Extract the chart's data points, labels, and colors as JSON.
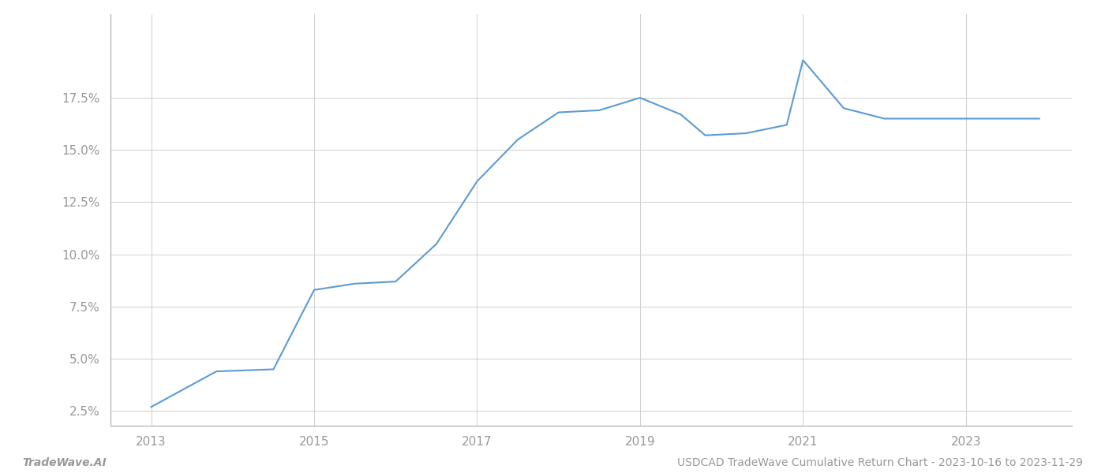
{
  "x_values": [
    2013.0,
    2013.8,
    2014.5,
    2015.0,
    2015.5,
    2016.0,
    2016.5,
    2017.0,
    2017.5,
    2018.0,
    2018.5,
    2019.0,
    2019.5,
    2019.8,
    2020.3,
    2020.8,
    2021.0,
    2021.5,
    2022.0,
    2022.5,
    2023.0,
    2023.9
  ],
  "y_values": [
    2.7,
    4.4,
    4.5,
    8.3,
    8.6,
    8.7,
    10.5,
    13.5,
    15.5,
    16.8,
    16.9,
    17.5,
    16.7,
    15.7,
    15.8,
    16.2,
    19.3,
    17.0,
    16.5,
    16.5,
    16.5,
    16.5
  ],
  "line_color": "#5b9bd5",
  "line_width": 1.5,
  "background_color": "#ffffff",
  "grid_color": "#d0d0d0",
  "yticks": [
    2.5,
    5.0,
    7.5,
    10.0,
    12.5,
    15.0,
    17.5
  ],
  "xticks": [
    2013,
    2015,
    2017,
    2019,
    2021,
    2023
  ],
  "xlim": [
    2012.5,
    2024.3
  ],
  "ylim": [
    1.8,
    21.5
  ],
  "tick_color": "#999999",
  "tick_fontsize": 11,
  "footer_left": "TradeWave.AI",
  "footer_right": "USDCAD TradeWave Cumulative Return Chart - 2023-10-16 to 2023-11-29",
  "footer_fontsize": 10,
  "footer_color": "#999999"
}
